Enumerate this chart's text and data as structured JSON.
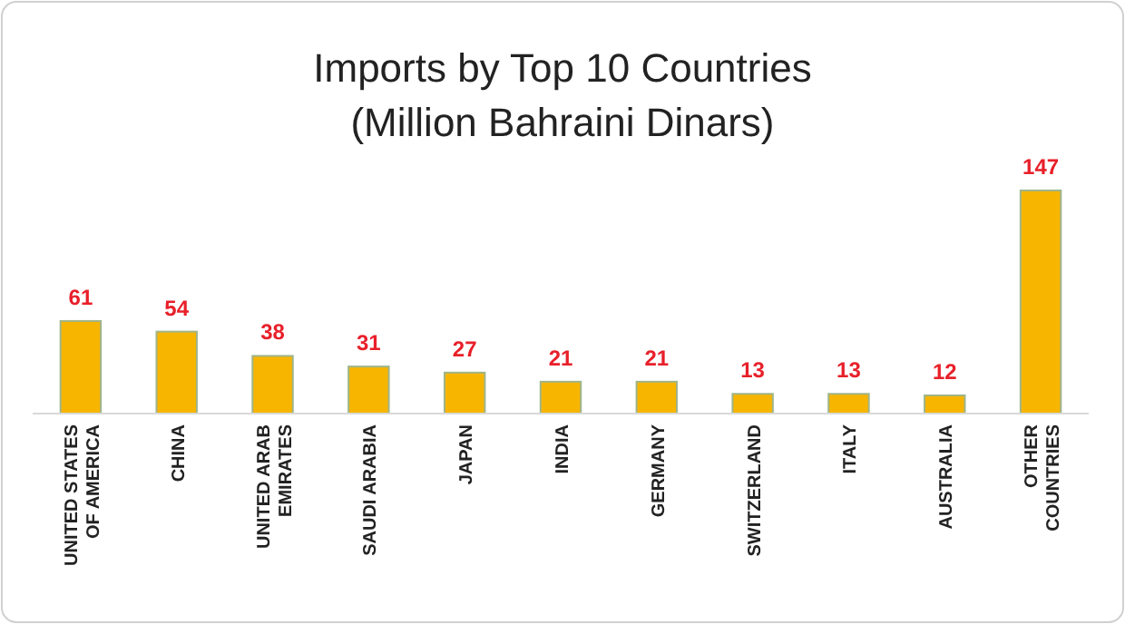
{
  "chart_data": {
    "type": "bar",
    "title": "Imports by Top 10 Countries\n(Million Bahraini Dinars)",
    "categories": [
      "UNITED STATES\nOF AMERICA",
      "CHINA",
      "UNITED ARAB\nEMIRATES",
      "SAUDI ARABIA",
      "JAPAN",
      "INDIA",
      "GERMANY",
      "SWITZERLAND",
      "ITALY",
      "AUSTRALIA",
      "OTHER\nCOUNTRIES"
    ],
    "values": [
      61,
      54,
      38,
      31,
      27,
      21,
      21,
      13,
      13,
      12,
      147
    ],
    "color": "#f7b500",
    "data_labels": true
  }
}
